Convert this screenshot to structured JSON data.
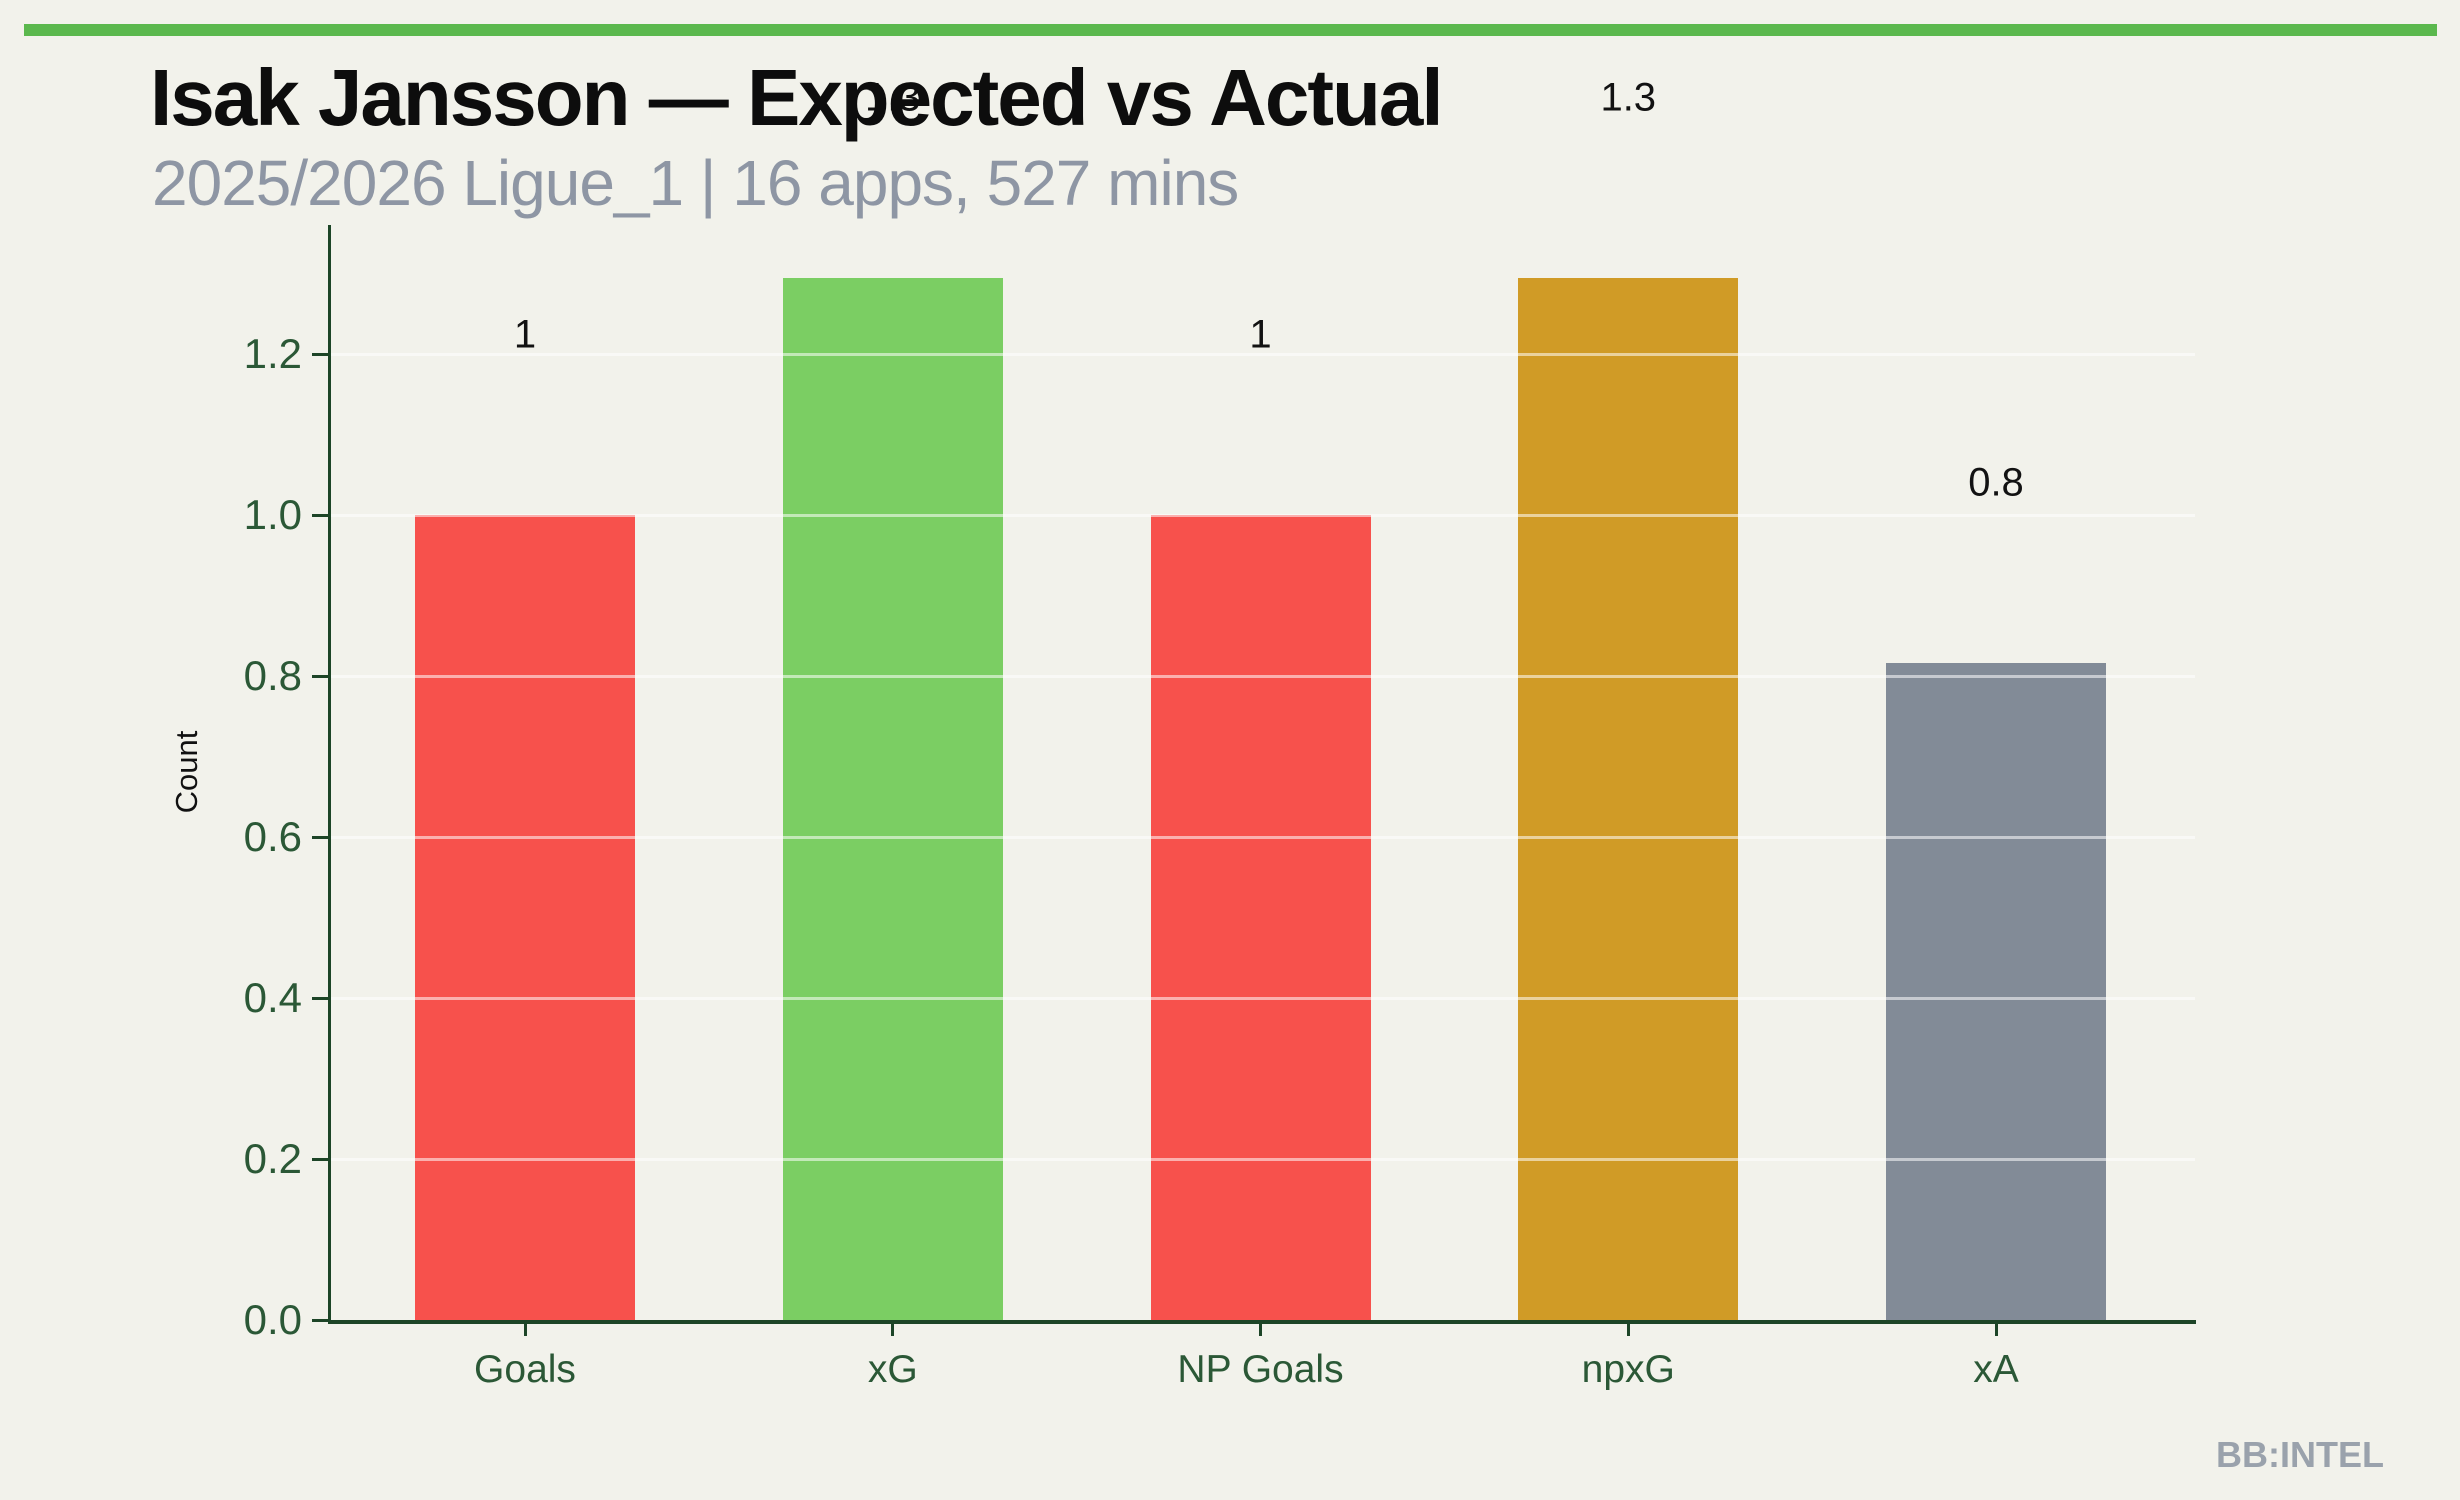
{
  "header": {
    "accent_stripe_color": "#5bb84d"
  },
  "chart_data": {
    "type": "bar",
    "title": "Isak Jansson — Expected vs Actual",
    "subtitle": "2025/2026 Ligue_1 | 16 apps, 527 mins",
    "categories": [
      "Goals",
      "xG",
      "NP Goals",
      "npxG",
      "xA"
    ],
    "values": [
      1,
      1.3,
      1,
      1.3,
      0.8
    ],
    "values_precise": [
      1.0,
      1.295,
      1.0,
      1.295,
      0.816
    ],
    "bar_labels": [
      "1",
      "1.3",
      "1",
      "1.3",
      "0.8"
    ],
    "bar_colors": [
      "#f7514c",
      "#7bce63",
      "#f7514c",
      "#d09b26",
      "#828b97"
    ],
    "bar_label_notes": [
      "visible",
      "hidden behind title",
      "visible",
      "visible",
      "visible"
    ],
    "xlabel": "",
    "ylabel": "Count",
    "ylim": [
      0,
      1.36
    ],
    "yticks": [
      0.0,
      0.2,
      0.4,
      0.6,
      0.8,
      1.0,
      1.2
    ],
    "ytick_labels": [
      "0.0",
      "0.2",
      "0.4",
      "0.6",
      "0.8",
      "1.0",
      "1.2"
    ],
    "grid": "horizontal gridlines, faint white, drawn over bars",
    "legend": "none",
    "axis_color": "#1d4527",
    "tick_label_color": "#2b5836",
    "value_label_color": "#121212",
    "background_color": "#f2f2eb"
  },
  "footer": {
    "watermark": "BB:INTEL"
  }
}
